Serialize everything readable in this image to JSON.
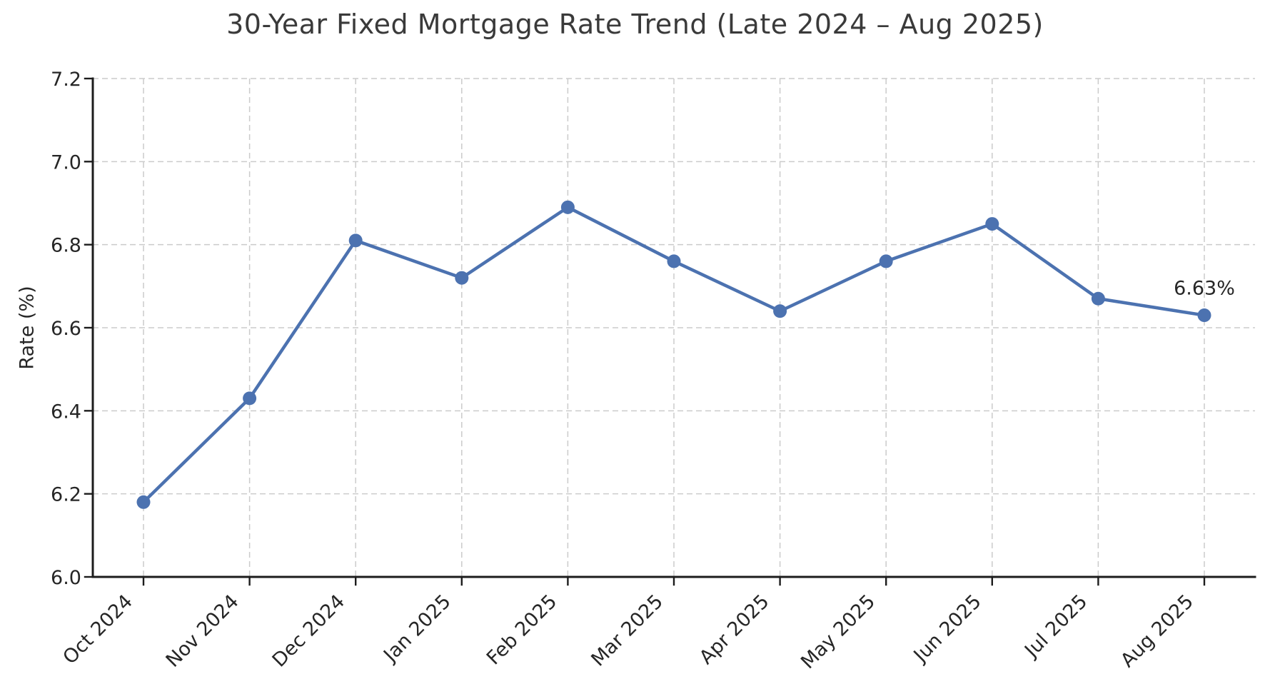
{
  "chart_data": {
    "type": "line",
    "title": "30-Year Fixed Mortgage Rate Trend (Late 2024 – Aug 2025)",
    "ylabel": "Rate (%)",
    "xlabel": "",
    "categories": [
      "Oct 2024",
      "Nov 2024",
      "Dec 2024",
      "Jan 2025",
      "Feb 2025",
      "Mar 2025",
      "Apr 2025",
      "May 2025",
      "Jun 2025",
      "Jul 2025",
      "Aug 2025"
    ],
    "series": [
      {
        "name": "30-Year Fixed Mortgage Rate",
        "values": [
          6.18,
          6.43,
          6.81,
          6.72,
          6.89,
          6.76,
          6.64,
          6.76,
          6.85,
          6.67,
          6.63
        ]
      }
    ],
    "ylim": [
      6.0,
      7.2
    ],
    "yticks": [
      6.0,
      6.2,
      6.4,
      6.6,
      6.8,
      7.0,
      7.2
    ],
    "ytick_labels": [
      "6.0",
      "6.2",
      "6.4",
      "6.6",
      "6.8",
      "7.0",
      "7.2"
    ],
    "xtick_rotation_deg": 45,
    "grid": "dashed, horizontal and vertical",
    "legend": "none",
    "annotation": {
      "text": "6.63%",
      "attach_to": "Aug 2025",
      "value": 6.63
    },
    "colors": {
      "line": "#4C72B0",
      "marker": "#4C72B0",
      "grid": "#cbcbcb",
      "axis": "#1c1c1c",
      "tick_text": "#262626",
      "title_text": "#3a3a3a",
      "annotation_text": "#262626",
      "background": "#ffffff"
    }
  }
}
